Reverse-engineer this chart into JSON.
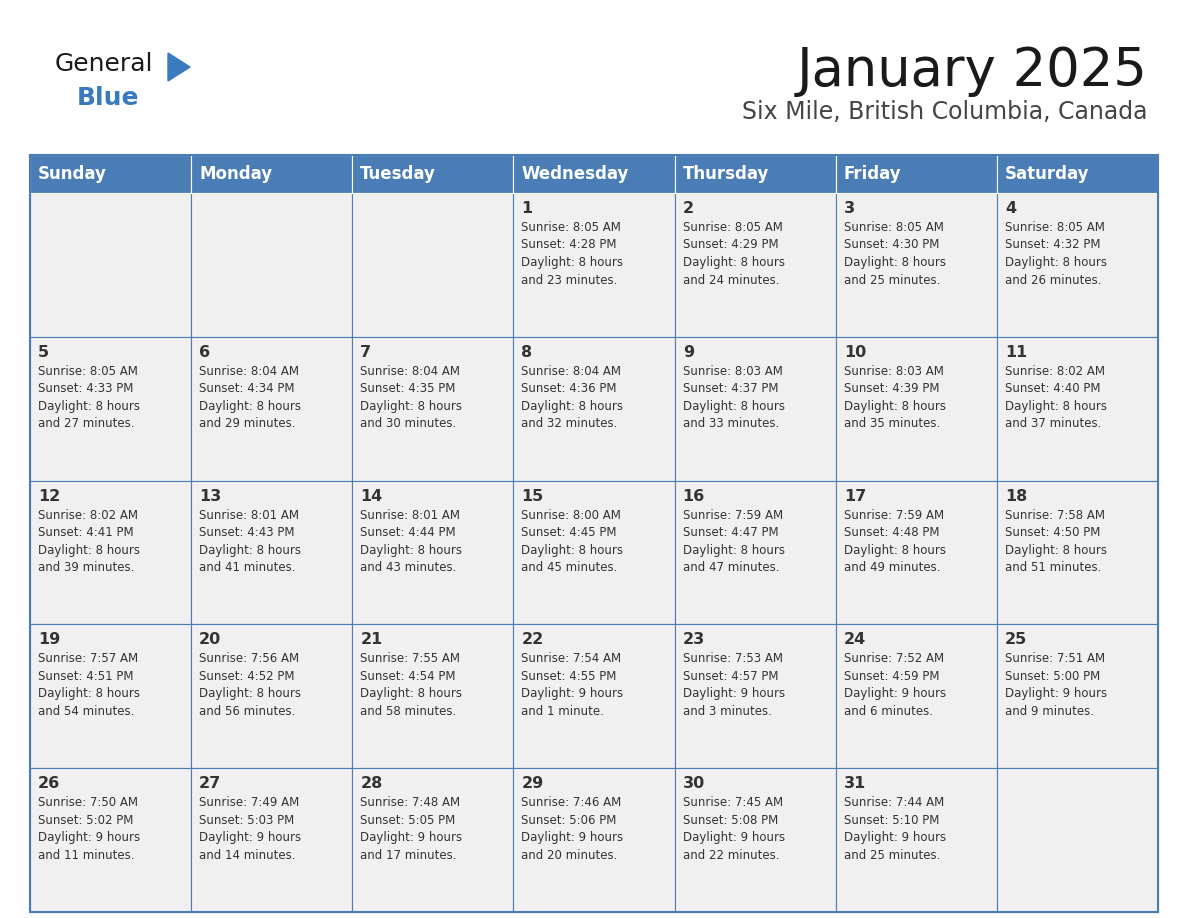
{
  "title": "January 2025",
  "subtitle": "Six Mile, British Columbia, Canada",
  "days_of_week": [
    "Sunday",
    "Monday",
    "Tuesday",
    "Wednesday",
    "Thursday",
    "Friday",
    "Saturday"
  ],
  "header_bg": "#4a7db5",
  "header_text_color": "#ffffff",
  "cell_bg": "#f0f0f0",
  "border_color": "#4a7db5",
  "text_color": "#333333",
  "title_color": "#1a1a1a",
  "subtitle_color": "#444444",
  "logo_general_color": "#1a1a1a",
  "logo_blue_color": "#3a7abf",
  "calendar": [
    [
      {
        "day": "",
        "info": ""
      },
      {
        "day": "",
        "info": ""
      },
      {
        "day": "",
        "info": ""
      },
      {
        "day": "1",
        "info": "Sunrise: 8:05 AM\nSunset: 4:28 PM\nDaylight: 8 hours\nand 23 minutes."
      },
      {
        "day": "2",
        "info": "Sunrise: 8:05 AM\nSunset: 4:29 PM\nDaylight: 8 hours\nand 24 minutes."
      },
      {
        "day": "3",
        "info": "Sunrise: 8:05 AM\nSunset: 4:30 PM\nDaylight: 8 hours\nand 25 minutes."
      },
      {
        "day": "4",
        "info": "Sunrise: 8:05 AM\nSunset: 4:32 PM\nDaylight: 8 hours\nand 26 minutes."
      }
    ],
    [
      {
        "day": "5",
        "info": "Sunrise: 8:05 AM\nSunset: 4:33 PM\nDaylight: 8 hours\nand 27 minutes."
      },
      {
        "day": "6",
        "info": "Sunrise: 8:04 AM\nSunset: 4:34 PM\nDaylight: 8 hours\nand 29 minutes."
      },
      {
        "day": "7",
        "info": "Sunrise: 8:04 AM\nSunset: 4:35 PM\nDaylight: 8 hours\nand 30 minutes."
      },
      {
        "day": "8",
        "info": "Sunrise: 8:04 AM\nSunset: 4:36 PM\nDaylight: 8 hours\nand 32 minutes."
      },
      {
        "day": "9",
        "info": "Sunrise: 8:03 AM\nSunset: 4:37 PM\nDaylight: 8 hours\nand 33 minutes."
      },
      {
        "day": "10",
        "info": "Sunrise: 8:03 AM\nSunset: 4:39 PM\nDaylight: 8 hours\nand 35 minutes."
      },
      {
        "day": "11",
        "info": "Sunrise: 8:02 AM\nSunset: 4:40 PM\nDaylight: 8 hours\nand 37 minutes."
      }
    ],
    [
      {
        "day": "12",
        "info": "Sunrise: 8:02 AM\nSunset: 4:41 PM\nDaylight: 8 hours\nand 39 minutes."
      },
      {
        "day": "13",
        "info": "Sunrise: 8:01 AM\nSunset: 4:43 PM\nDaylight: 8 hours\nand 41 minutes."
      },
      {
        "day": "14",
        "info": "Sunrise: 8:01 AM\nSunset: 4:44 PM\nDaylight: 8 hours\nand 43 minutes."
      },
      {
        "day": "15",
        "info": "Sunrise: 8:00 AM\nSunset: 4:45 PM\nDaylight: 8 hours\nand 45 minutes."
      },
      {
        "day": "16",
        "info": "Sunrise: 7:59 AM\nSunset: 4:47 PM\nDaylight: 8 hours\nand 47 minutes."
      },
      {
        "day": "17",
        "info": "Sunrise: 7:59 AM\nSunset: 4:48 PM\nDaylight: 8 hours\nand 49 minutes."
      },
      {
        "day": "18",
        "info": "Sunrise: 7:58 AM\nSunset: 4:50 PM\nDaylight: 8 hours\nand 51 minutes."
      }
    ],
    [
      {
        "day": "19",
        "info": "Sunrise: 7:57 AM\nSunset: 4:51 PM\nDaylight: 8 hours\nand 54 minutes."
      },
      {
        "day": "20",
        "info": "Sunrise: 7:56 AM\nSunset: 4:52 PM\nDaylight: 8 hours\nand 56 minutes."
      },
      {
        "day": "21",
        "info": "Sunrise: 7:55 AM\nSunset: 4:54 PM\nDaylight: 8 hours\nand 58 minutes."
      },
      {
        "day": "22",
        "info": "Sunrise: 7:54 AM\nSunset: 4:55 PM\nDaylight: 9 hours\nand 1 minute."
      },
      {
        "day": "23",
        "info": "Sunrise: 7:53 AM\nSunset: 4:57 PM\nDaylight: 9 hours\nand 3 minutes."
      },
      {
        "day": "24",
        "info": "Sunrise: 7:52 AM\nSunset: 4:59 PM\nDaylight: 9 hours\nand 6 minutes."
      },
      {
        "day": "25",
        "info": "Sunrise: 7:51 AM\nSunset: 5:00 PM\nDaylight: 9 hours\nand 9 minutes."
      }
    ],
    [
      {
        "day": "26",
        "info": "Sunrise: 7:50 AM\nSunset: 5:02 PM\nDaylight: 9 hours\nand 11 minutes."
      },
      {
        "day": "27",
        "info": "Sunrise: 7:49 AM\nSunset: 5:03 PM\nDaylight: 9 hours\nand 14 minutes."
      },
      {
        "day": "28",
        "info": "Sunrise: 7:48 AM\nSunset: 5:05 PM\nDaylight: 9 hours\nand 17 minutes."
      },
      {
        "day": "29",
        "info": "Sunrise: 7:46 AM\nSunset: 5:06 PM\nDaylight: 9 hours\nand 20 minutes."
      },
      {
        "day": "30",
        "info": "Sunrise: 7:45 AM\nSunset: 5:08 PM\nDaylight: 9 hours\nand 22 minutes."
      },
      {
        "day": "31",
        "info": "Sunrise: 7:44 AM\nSunset: 5:10 PM\nDaylight: 9 hours\nand 25 minutes."
      },
      {
        "day": "",
        "info": ""
      }
    ]
  ]
}
